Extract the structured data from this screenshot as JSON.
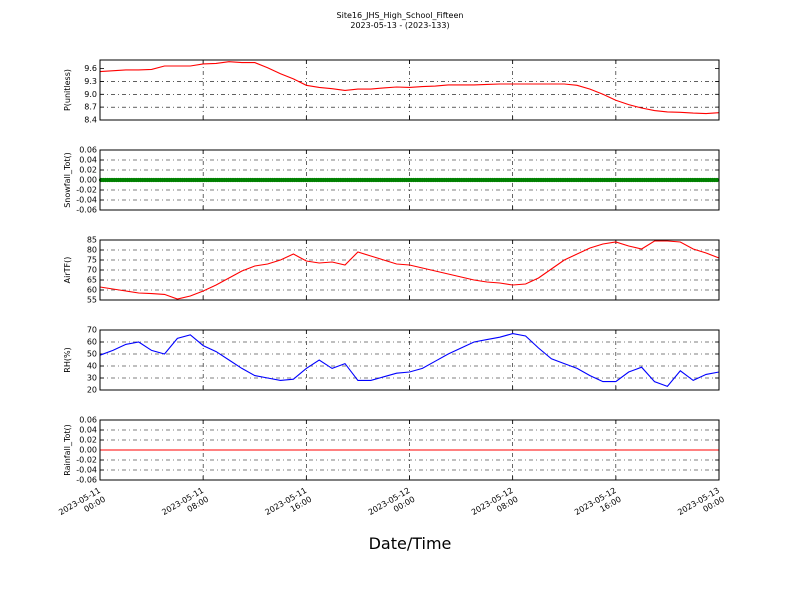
{
  "figure": {
    "title": "Site16_JHS_High_School_Fifteen",
    "subtitle": "2023-05-13 - (2023-133)",
    "xlabel": "Date/Time"
  },
  "chart_data": [
    {
      "type": "line",
      "ylabel": "P(unitless)",
      "ylim": [
        8.4,
        9.8
      ],
      "yticks": [
        "8.4",
        "8.7",
        "9.0",
        "9.3",
        "9.6"
      ],
      "grid": true,
      "color": "#ff0000",
      "x_hours": [
        0,
        2,
        3,
        4,
        5,
        6,
        7,
        8,
        9,
        10,
        11,
        12,
        13,
        14,
        15,
        16,
        17,
        18,
        19,
        20,
        21,
        22,
        23,
        24,
        25,
        26,
        27,
        28,
        29,
        30,
        31,
        32,
        33,
        34,
        35,
        36,
        37,
        38,
        39,
        40,
        41,
        42,
        43,
        44,
        45,
        46,
        47,
        48
      ],
      "values": [
        9.53,
        9.57,
        9.57,
        9.58,
        9.66,
        9.66,
        9.66,
        9.71,
        9.72,
        9.76,
        9.74,
        9.74,
        9.62,
        9.48,
        9.36,
        9.21,
        9.16,
        9.13,
        9.09,
        9.12,
        9.12,
        9.15,
        9.17,
        9.16,
        9.18,
        9.19,
        9.22,
        9.22,
        9.22,
        9.23,
        9.24,
        9.24,
        9.24,
        9.24,
        9.24,
        9.24,
        9.21,
        9.12,
        9.0,
        8.86,
        8.76,
        8.68,
        8.62,
        8.59,
        8.58,
        8.56,
        8.55,
        8.57
      ]
    },
    {
      "type": "line",
      "ylabel": "Snowfall_Tot()",
      "ylim": [
        -0.06,
        0.06
      ],
      "yticks": [
        "-0.06",
        "-0.04",
        "-0.02",
        "0.00",
        "0.02",
        "0.04",
        "0.06"
      ],
      "grid": true,
      "color": "#008000",
      "marker": "dot",
      "x_hours": [
        0,
        48
      ],
      "values": [
        0,
        0
      ]
    },
    {
      "type": "line",
      "ylabel": "AirTF()",
      "ylim": [
        55,
        85
      ],
      "yticks": [
        "55",
        "60",
        "65",
        "70",
        "75",
        "80",
        "85"
      ],
      "grid": true,
      "color": "#ff0000",
      "x_hours": [
        0,
        1,
        2,
        3,
        4,
        5,
        6,
        7,
        8,
        9,
        10,
        11,
        12,
        13,
        14,
        15,
        16,
        17,
        18,
        19,
        20,
        21,
        22,
        23,
        24,
        25,
        26,
        27,
        28,
        29,
        30,
        31,
        32,
        33,
        34,
        35,
        36,
        37,
        38,
        39,
        40,
        41,
        42,
        43,
        44,
        45,
        46,
        47,
        48
      ],
      "values": [
        61.5,
        60.5,
        59.5,
        58.5,
        58.2,
        57.8,
        55.5,
        57.0,
        59.5,
        62.5,
        66.0,
        69.5,
        72.0,
        73.0,
        75.0,
        78.0,
        74.5,
        73.5,
        74.0,
        72.5,
        79.0,
        77.0,
        75.0,
        73.0,
        72.5,
        71.0,
        69.5,
        68.0,
        66.5,
        65.0,
        64.0,
        63.5,
        62.5,
        63.0,
        66.0,
        70.5,
        75.0,
        78.0,
        81.0,
        83.0,
        84.0,
        82.0,
        80.5,
        84.5,
        84.5,
        84.0,
        80.5,
        78.5,
        76.0
      ]
    },
    {
      "type": "line",
      "ylabel": "RH(%)",
      "ylim": [
        20,
        70
      ],
      "yticks": [
        "20",
        "30",
        "40",
        "50",
        "60",
        "70"
      ],
      "grid": true,
      "color": "#0000ff",
      "x_hours": [
        0,
        1,
        2,
        3,
        4,
        5,
        6,
        7,
        8,
        9,
        10,
        11,
        12,
        13,
        14,
        15,
        16,
        17,
        18,
        19,
        20,
        21,
        22,
        23,
        24,
        25,
        26,
        27,
        28,
        29,
        30,
        31,
        32,
        33,
        34,
        35,
        36,
        37,
        38,
        39,
        40,
        41,
        42,
        43,
        44,
        45,
        46,
        47,
        48
      ],
      "values": [
        49,
        53,
        58,
        60,
        53,
        50,
        63,
        66,
        57,
        52,
        45,
        38,
        32,
        30,
        28,
        29,
        38,
        45,
        38,
        42,
        28,
        28,
        31,
        34,
        35,
        38,
        44,
        50,
        55,
        60,
        62,
        64,
        67,
        65,
        55,
        46,
        42,
        38,
        32,
        27,
        27,
        35,
        39,
        27,
        23,
        36,
        28,
        33,
        35
      ]
    },
    {
      "type": "line",
      "ylabel": "Rainfall_Tot()",
      "ylim": [
        -0.06,
        0.06
      ],
      "yticks": [
        "-0.06",
        "-0.04",
        "-0.02",
        "0.00",
        "0.02",
        "0.04",
        "0.06"
      ],
      "grid": true,
      "color": "#ff0000",
      "x_hours": [
        0,
        48
      ],
      "values": [
        0,
        0
      ]
    }
  ],
  "x_axis": {
    "range_hours": [
      0,
      48
    ],
    "tick_hours": [
      0,
      8,
      16,
      24,
      32,
      40,
      48
    ],
    "tick_labels": [
      [
        "2023-05-11",
        "00:00"
      ],
      [
        "2023-05-11",
        "08:00"
      ],
      [
        "2023-05-11",
        "16:00"
      ],
      [
        "2023-05-12",
        "00:00"
      ],
      [
        "2023-05-12",
        "08:00"
      ],
      [
        "2023-05-12",
        "16:00"
      ],
      [
        "2023-05-13",
        "00:00"
      ]
    ]
  }
}
